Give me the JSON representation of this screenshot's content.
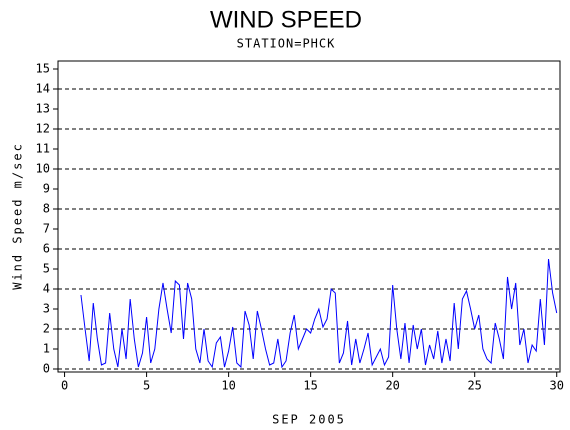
{
  "chart_data": {
    "type": "line",
    "title": "WIND SPEED",
    "subtitle": "STATION=PHCK",
    "x_label": "SEP 2005",
    "y_label": "Wind Speed m/sec",
    "xlim": [
      -0.4,
      30.2
    ],
    "xticks": [
      0,
      5,
      10,
      15,
      20,
      25,
      30
    ],
    "ylim": [
      -0.15,
      15.4
    ],
    "yticks": [
      0,
      1,
      2,
      3,
      4,
      5,
      6,
      7,
      8,
      9,
      10,
      11,
      12,
      13,
      14,
      15
    ],
    "ygrid": [
      0,
      2,
      4,
      6,
      8,
      10,
      12,
      14
    ],
    "series": [
      {
        "color": "#0000ff",
        "x": [
          1,
          1.25,
          1.5,
          1.75,
          2,
          2.25,
          2.5,
          2.75,
          3,
          3.25,
          3.5,
          3.75,
          4,
          4.25,
          4.5,
          4.75,
          5,
          5.25,
          5.5,
          5.75,
          6,
          6.25,
          6.5,
          6.75,
          7,
          7.25,
          7.5,
          7.75,
          8,
          8.25,
          8.5,
          8.75,
          9,
          9.25,
          9.5,
          9.75,
          10,
          10.25,
          10.5,
          10.75,
          11,
          11.25,
          11.5,
          11.75,
          12,
          12.25,
          12.5,
          12.75,
          13,
          13.25,
          13.5,
          13.75,
          14,
          14.25,
          14.5,
          14.75,
          15,
          15.25,
          15.5,
          15.75,
          16,
          16.25,
          16.5,
          16.75,
          17,
          17.25,
          17.5,
          17.75,
          18,
          18.25,
          18.5,
          18.75,
          19,
          19.25,
          19.5,
          19.75,
          20,
          20.25,
          20.5,
          20.75,
          21,
          21.25,
          21.5,
          21.75,
          22,
          22.25,
          22.5,
          22.75,
          23,
          23.25,
          23.5,
          23.75,
          24,
          24.25,
          24.5,
          24.75,
          25,
          25.25,
          25.5,
          25.75,
          26,
          26.25,
          26.5,
          26.75,
          27,
          27.25,
          27.5,
          27.75,
          28,
          28.25,
          28.5,
          28.75,
          29,
          29.25,
          29.5,
          29.75,
          30
        ],
        "values": [
          3.7,
          2.0,
          0.4,
          3.3,
          1.5,
          0.2,
          0.3,
          2.8,
          1.0,
          0.1,
          2.0,
          0.5,
          3.5,
          1.5,
          0.1,
          0.8,
          2.6,
          0.3,
          1.0,
          3.0,
          4.3,
          3.0,
          1.8,
          4.4,
          4.2,
          1.5,
          4.3,
          3.5,
          1.0,
          0.3,
          2.0,
          0.4,
          0.1,
          1.3,
          1.6,
          0.1,
          0.9,
          2.1,
          0.3,
          0.1,
          2.9,
          2.2,
          0.5,
          2.9,
          2.0,
          1.0,
          0.2,
          0.3,
          1.5,
          0.1,
          0.4,
          1.8,
          2.7,
          1.0,
          1.5,
          2.0,
          1.8,
          2.5,
          3.0,
          2.1,
          2.5,
          4.0,
          3.8,
          0.3,
          0.8,
          2.4,
          0.2,
          1.5,
          0.3,
          1.0,
          1.8,
          0.2,
          0.6,
          1.0,
          0.2,
          0.6,
          4.2,
          2.0,
          0.5,
          2.3,
          0.3,
          2.2,
          1.0,
          2.0,
          0.2,
          1.2,
          0.5,
          1.9,
          0.3,
          1.5,
          0.4,
          3.3,
          1.0,
          3.5,
          3.9,
          3.0,
          2.0,
          2.7,
          1.0,
          0.5,
          0.3,
          2.3,
          1.5,
          0.5,
          4.6,
          3.0,
          4.3,
          1.2,
          2.0,
          0.3,
          1.2,
          0.9,
          3.5,
          1.2,
          5.5,
          3.8,
          2.8
        ]
      }
    ]
  }
}
